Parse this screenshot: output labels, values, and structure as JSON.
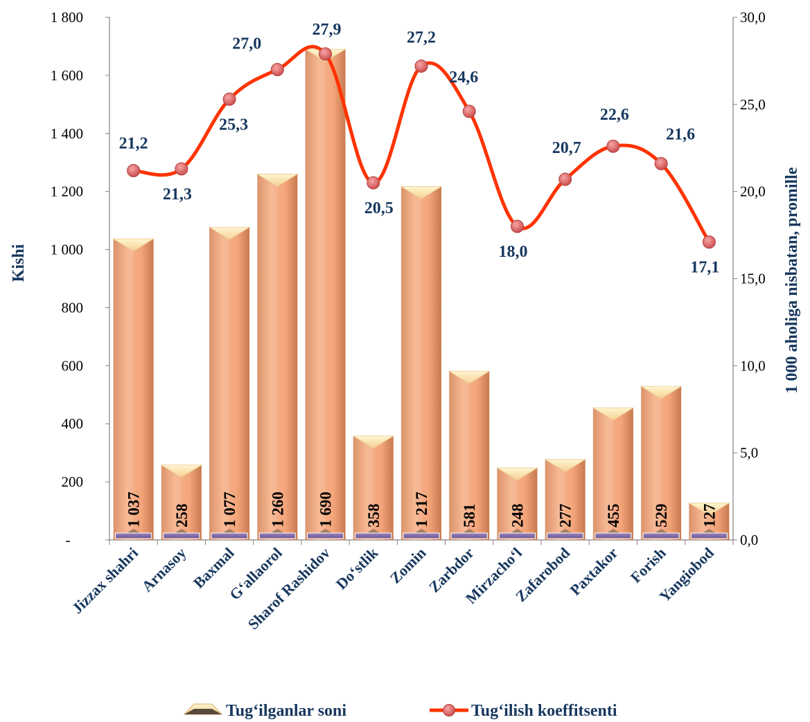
{
  "chart_data": {
    "type": "bar",
    "categories": [
      "Jizzax shahri",
      "Arnasoy",
      "Baxmal",
      "G‘allaorol",
      "Sharof Rashidov",
      "Do‘stlik",
      "Zomin",
      "Zarbdor",
      "Mirzacho‘l",
      "Zafarobod",
      "Paxtakor",
      "Forish",
      "Yangiobod"
    ],
    "series": [
      {
        "name": "Tug‘ilganlar soni",
        "type": "bar",
        "axis": "left",
        "values": [
          1037,
          258,
          1077,
          1260,
          1690,
          358,
          1217,
          581,
          248,
          277,
          455,
          529,
          127
        ],
        "labels": [
          "1 037",
          "258",
          "1 077",
          "1 260",
          "1 690",
          "358",
          "1 217",
          "581",
          "248",
          "277",
          "455",
          "529",
          "127"
        ]
      },
      {
        "name": "Tug‘ilish koeffitsenti",
        "type": "line",
        "axis": "right",
        "values": [
          21.2,
          21.3,
          25.3,
          27.0,
          27.9,
          20.5,
          27.2,
          24.6,
          18.0,
          20.7,
          22.6,
          21.6,
          17.1
        ],
        "labels": [
          "21,2",
          "21,3",
          "25,3",
          "27,0",
          "27,9",
          "20,5",
          "27,2",
          "24,6",
          "18,0",
          "20,7",
          "22,6",
          "21,6",
          "17,1"
        ]
      }
    ],
    "ylabel": "Kishi",
    "y2label": "1 000 aholiga nisbatan, promille",
    "ylim": [
      0,
      1800
    ],
    "y2lim": [
      0,
      30
    ],
    "yticks": [
      "-",
      "200",
      "400",
      "600",
      "800",
      "1 000",
      "1 200",
      "1 400",
      "1 600",
      "1 800"
    ],
    "y2ticks": [
      "0,0",
      "5,0",
      "10,0",
      "15,0",
      "20,0",
      "25,0",
      "30,0"
    ],
    "legend_position": "bottom",
    "grid": false,
    "colors": {
      "bar": "#f2a87e",
      "bar_dark": "#d88a5c",
      "bar_top": "#fde9b8",
      "line": "#ff3300",
      "marker": "#e06464",
      "base_strip": "#8064a2",
      "label_navy": "#17375e"
    }
  }
}
